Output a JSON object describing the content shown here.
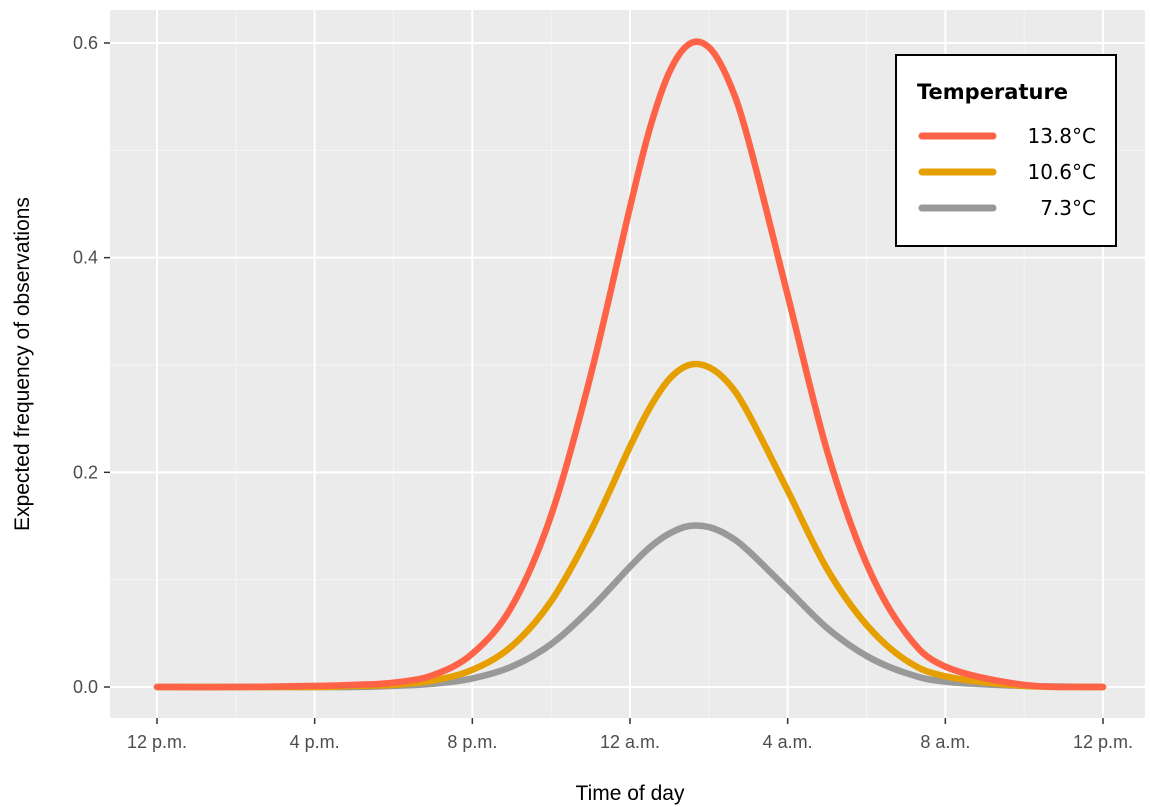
{
  "chart_data": {
    "type": "line",
    "xlabel": "Time of day",
    "ylabel": "Expected frequency of observations",
    "x_ticks": [
      {
        "hour": 12,
        "label": "12 p.m."
      },
      {
        "hour": 16,
        "label": "4 p.m."
      },
      {
        "hour": 20,
        "label": "8 p.m."
      },
      {
        "hour": 24,
        "label": "12 a.m."
      },
      {
        "hour": 28,
        "label": "4 a.m."
      },
      {
        "hour": 32,
        "label": "8 a.m."
      },
      {
        "hour": 36,
        "label": "12 p.m."
      }
    ],
    "y_ticks": [
      {
        "value": 0.0,
        "label": "0.0"
      },
      {
        "value": 0.2,
        "label": "0.2"
      },
      {
        "value": 0.4,
        "label": "0.4"
      },
      {
        "value": 0.6,
        "label": "0.6"
      }
    ],
    "xlim": [
      12,
      36
    ],
    "ylim": [
      0,
      0.6
    ],
    "grid": true,
    "legend": {
      "title": "Temperature",
      "position": "top-right"
    },
    "series": [
      {
        "name": "13.8°C",
        "color": "#ff6347",
        "x": [
          12,
          14,
          16,
          17,
          18,
          19,
          20,
          21,
          22,
          23,
          24,
          24.5,
          25,
          25.5,
          26,
          26.5,
          27,
          28,
          29,
          30,
          31,
          32,
          34,
          36
        ],
        "y": [
          0,
          0,
          0.001,
          0.002,
          0.004,
          0.011,
          0.031,
          0.075,
          0.16,
          0.29,
          0.447,
          0.52,
          0.573,
          0.599,
          0.596,
          0.565,
          0.51,
          0.365,
          0.22,
          0.115,
          0.05,
          0.019,
          0.002,
          0
        ]
      },
      {
        "name": "10.6°C",
        "color": "#e69f00",
        "x": [
          12,
          14,
          16,
          17,
          18,
          19,
          20,
          21,
          22,
          23,
          24,
          24.5,
          25,
          25.5,
          26,
          26.5,
          27,
          28,
          29,
          30,
          31,
          32,
          34,
          36
        ],
        "y": [
          0,
          0,
          0,
          0.001,
          0.002,
          0.006,
          0.016,
          0.038,
          0.08,
          0.145,
          0.224,
          0.26,
          0.287,
          0.3,
          0.298,
          0.283,
          0.255,
          0.183,
          0.11,
          0.058,
          0.025,
          0.01,
          0.001,
          0
        ]
      },
      {
        "name": "7.3°C",
        "color": "#999999",
        "x": [
          12,
          14,
          16,
          17,
          18,
          19,
          20,
          21,
          22,
          23,
          24,
          24.5,
          25,
          25.5,
          26,
          26.5,
          27,
          28,
          29,
          30,
          31,
          32,
          34,
          36
        ],
        "y": [
          0,
          0,
          0,
          0,
          0.001,
          0.003,
          0.008,
          0.019,
          0.04,
          0.073,
          0.112,
          0.13,
          0.143,
          0.15,
          0.149,
          0.141,
          0.127,
          0.091,
          0.055,
          0.029,
          0.013,
          0.005,
          0.001,
          0
        ]
      }
    ]
  }
}
